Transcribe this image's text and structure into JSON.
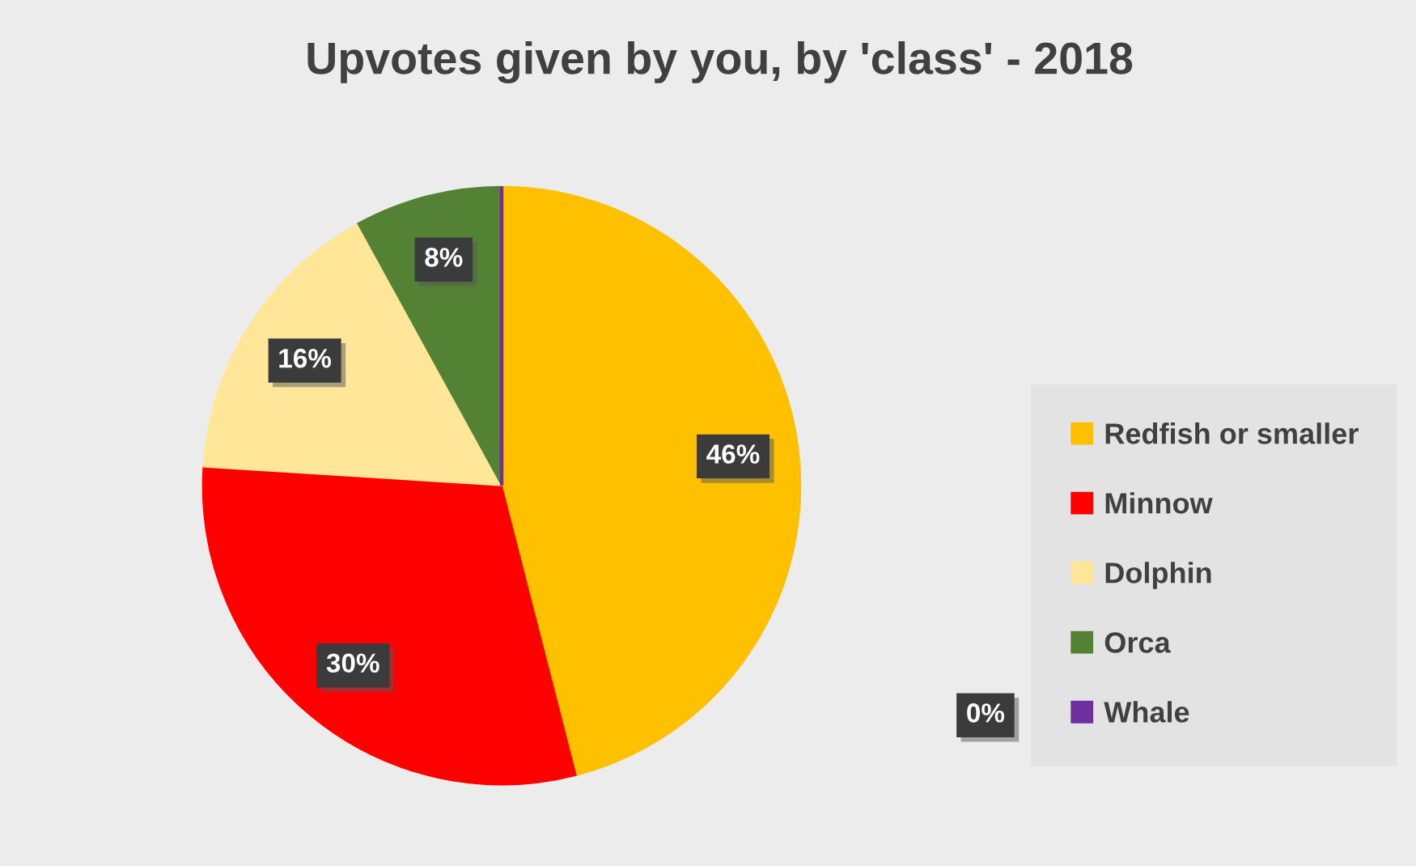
{
  "chart_data": {
    "type": "pie",
    "title": "Upvotes given by you, by 'class' - 2018",
    "categories": [
      "Redfish or smaller",
      "Minnow",
      "Dolphin",
      "Orca",
      "Whale"
    ],
    "values": [
      46,
      30,
      16,
      8,
      0
    ],
    "colors": [
      "#ffc000",
      "#ff0000",
      "#ffe699",
      "#548235",
      "#7030a0"
    ],
    "value_labels": [
      "46%",
      "30%",
      "16%",
      "8%",
      "0%"
    ],
    "legend": "right"
  }
}
